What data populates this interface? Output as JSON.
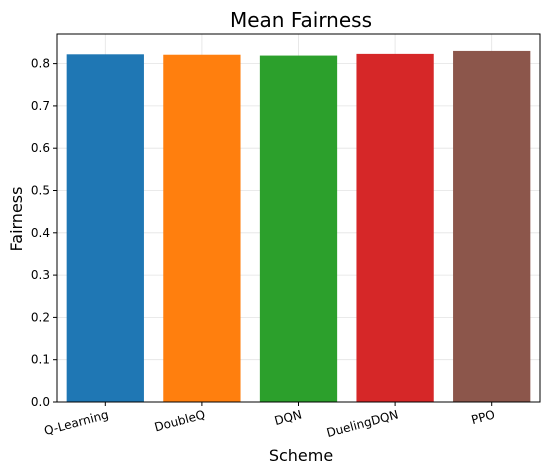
{
  "chart_data": {
    "type": "bar",
    "title": "Mean Fairness",
    "xlabel": "Scheme",
    "ylabel": "Fairness",
    "categories": [
      "Q-Learning",
      "DoubleQ",
      "DQN",
      "DuelingDQN",
      "PPO"
    ],
    "values": [
      0.822,
      0.821,
      0.819,
      0.823,
      0.83
    ],
    "colors": [
      "#1f77b4",
      "#ff7f0e",
      "#2ca02c",
      "#d62728",
      "#8c564b"
    ],
    "ylim": [
      0,
      0.87
    ],
    "yticks": [
      "0.0",
      "0.1",
      "0.2",
      "0.3",
      "0.4",
      "0.5",
      "0.6",
      "0.7",
      "0.8"
    ],
    "grid": true,
    "xtick_rotation": "slanted"
  }
}
